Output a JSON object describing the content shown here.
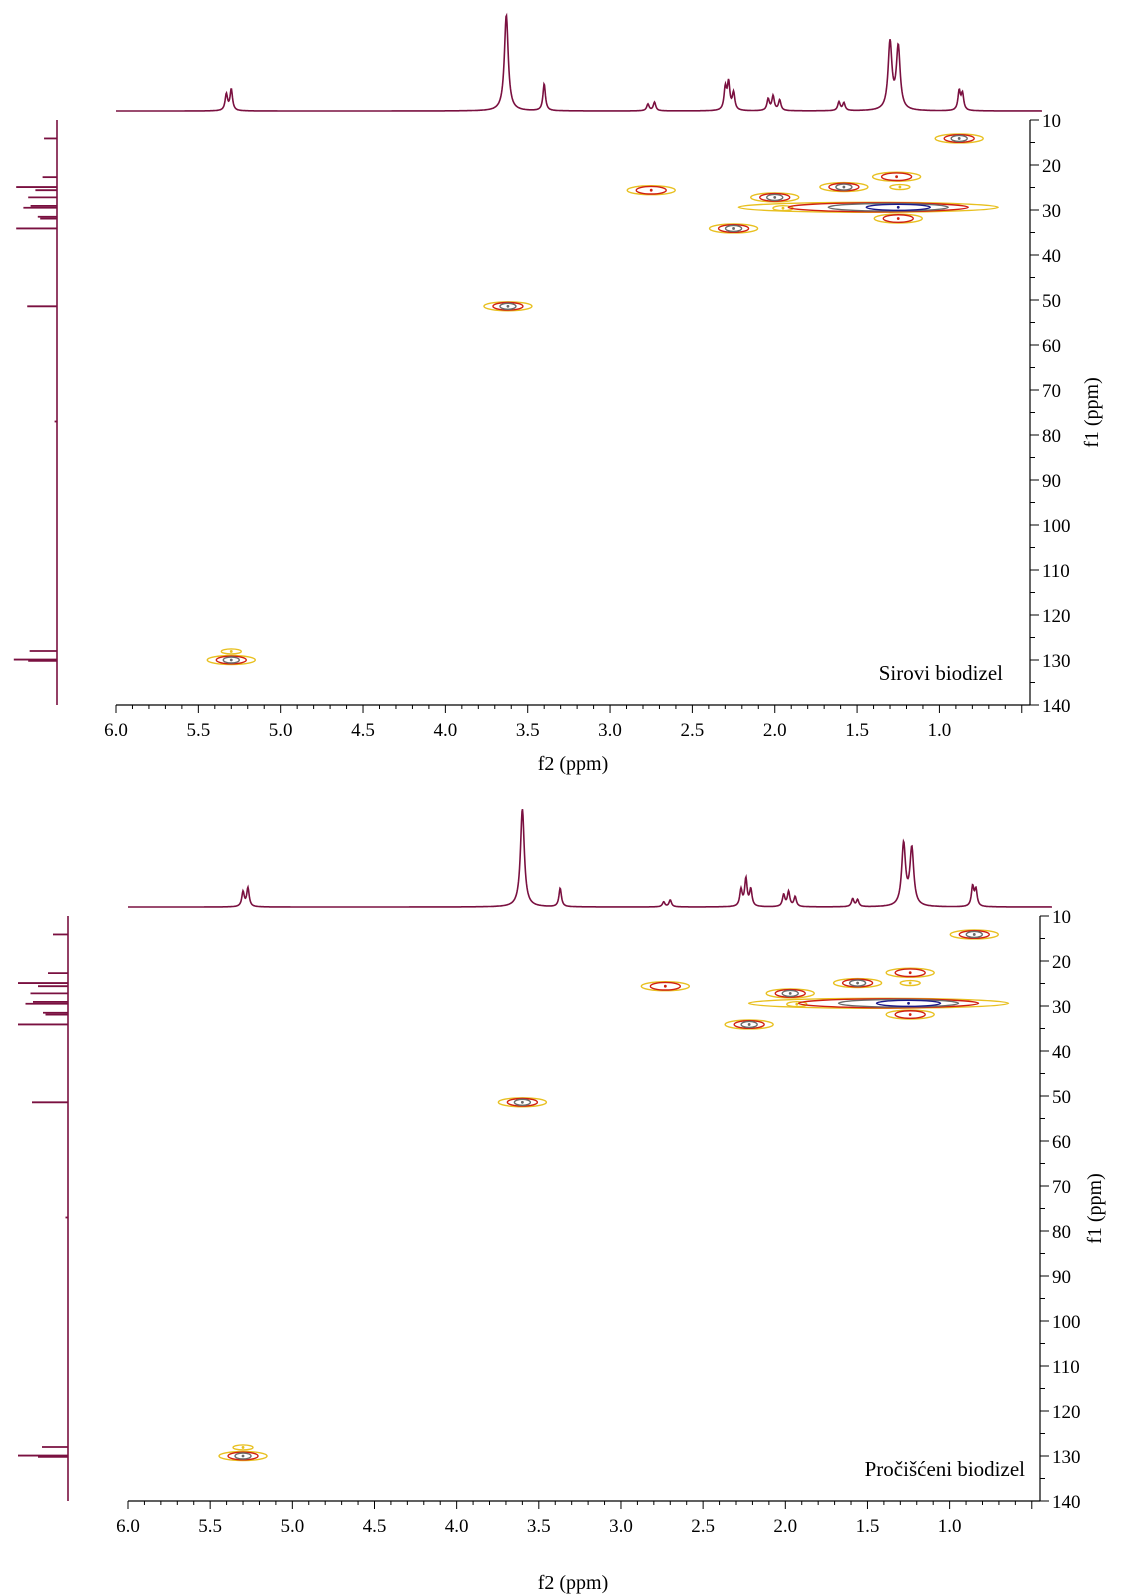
{
  "colors": {
    "projection": "#7a1040",
    "axis": "#000000",
    "contour_levels": [
      "#e8c020",
      "#d02010",
      "#6a6a6a",
      "#1a1a8a"
    ]
  },
  "chart_data": [
    {
      "type": "hsqc-2d-nmr",
      "sample_label": "Sirovi biodizel",
      "xlabel": "f2 (ppm)",
      "ylabel": "f1 (ppm)",
      "xlim": [
        6.0,
        0.45
      ],
      "ylim": [
        10,
        140
      ],
      "x_ticks": [
        "6.0",
        "5.5",
        "5.0",
        "4.5",
        "4.0",
        "3.5",
        "3.0",
        "2.5",
        "2.0",
        "1.5",
        "1.0"
      ],
      "y_ticks": [
        "10",
        "20",
        "30",
        "40",
        "50",
        "60",
        "70",
        "80",
        "90",
        "100",
        "110",
        "120",
        "130",
        "140"
      ],
      "h1_peaks": [
        {
          "ppm": 5.33,
          "height": 0.17
        },
        {
          "ppm": 5.3,
          "height": 0.22
        },
        {
          "ppm": 3.63,
          "height": 1.0
        },
        {
          "ppm": 3.4,
          "height": 0.28
        },
        {
          "ppm": 2.77,
          "height": 0.07
        },
        {
          "ppm": 2.73,
          "height": 0.09
        },
        {
          "ppm": 2.3,
          "height": 0.23
        },
        {
          "ppm": 2.28,
          "height": 0.28
        },
        {
          "ppm": 2.25,
          "height": 0.18
        },
        {
          "ppm": 2.04,
          "height": 0.12
        },
        {
          "ppm": 2.01,
          "height": 0.15
        },
        {
          "ppm": 1.97,
          "height": 0.11
        },
        {
          "ppm": 1.61,
          "height": 0.09
        },
        {
          "ppm": 1.58,
          "height": 0.08
        },
        {
          "ppm": 1.3,
          "height": 0.7
        },
        {
          "ppm": 1.25,
          "height": 0.65
        },
        {
          "ppm": 0.88,
          "height": 0.2
        },
        {
          "ppm": 0.86,
          "height": 0.17
        }
      ],
      "c13_peaks": [
        {
          "ppm": 14.1,
          "height": 0.27
        },
        {
          "ppm": 22.7,
          "height": 0.3
        },
        {
          "ppm": 24.9,
          "height": 0.85
        },
        {
          "ppm": 25.6,
          "height": 0.45
        },
        {
          "ppm": 27.2,
          "height": 0.6
        },
        {
          "ppm": 29.1,
          "height": 0.55
        },
        {
          "ppm": 29.5,
          "height": 0.7
        },
        {
          "ppm": 31.5,
          "height": 0.4
        },
        {
          "ppm": 31.9,
          "height": 0.35
        },
        {
          "ppm": 34.1,
          "height": 0.85
        },
        {
          "ppm": 51.4,
          "height": 0.62
        },
        {
          "ppm": 77.0,
          "height": 0.05
        },
        {
          "ppm": 128.0,
          "height": 0.57
        },
        {
          "ppm": 129.9,
          "height": 0.9
        },
        {
          "ppm": 130.2,
          "height": 0.6
        }
      ],
      "cross_peaks": [
        {
          "h": 5.3,
          "c": 130.0,
          "levels": 3
        },
        {
          "h": 5.3,
          "c": 128.1,
          "levels": 1
        },
        {
          "h": 3.62,
          "c": 51.4,
          "levels": 3
        },
        {
          "h": 2.75,
          "c": 25.6,
          "levels": 2
        },
        {
          "h": 2.25,
          "c": 34.1,
          "levels": 3
        },
        {
          "h": 2.0,
          "c": 27.2,
          "levels": 3
        },
        {
          "h": 1.95,
          "c": 29.6,
          "levels": 1
        },
        {
          "h": 1.58,
          "c": 24.9,
          "levels": 3
        },
        {
          "h": 1.26,
          "c": 22.6,
          "levels": 2
        },
        {
          "h": 1.24,
          "c": 24.9,
          "levels": 1
        },
        {
          "h": 1.25,
          "c": 29.4,
          "levels": 4
        },
        {
          "h": 1.25,
          "c": 31.9,
          "levels": 2
        },
        {
          "h": 0.88,
          "c": 14.1,
          "levels": 3
        }
      ]
    },
    {
      "type": "hsqc-2d-nmr",
      "sample_label": "Pročišćeni biodizel",
      "xlabel": "f2 (ppm)",
      "ylabel": "f1 (ppm)",
      "xlim": [
        6.0,
        0.45
      ],
      "ylim": [
        10,
        140
      ],
      "x_ticks": [
        "6.0",
        "5.5",
        "5.0",
        "4.5",
        "4.0",
        "3.5",
        "3.0",
        "2.5",
        "2.0",
        "1.5",
        "1.0"
      ],
      "y_ticks": [
        "10",
        "20",
        "30",
        "40",
        "50",
        "60",
        "70",
        "80",
        "90",
        "100",
        "110",
        "120",
        "130",
        "140"
      ],
      "h1_peaks": [
        {
          "ppm": 5.3,
          "height": 0.15
        },
        {
          "ppm": 5.27,
          "height": 0.19
        },
        {
          "ppm": 3.6,
          "height": 1.0
        },
        {
          "ppm": 3.37,
          "height": 0.19
        },
        {
          "ppm": 2.74,
          "height": 0.05
        },
        {
          "ppm": 2.7,
          "height": 0.07
        },
        {
          "ppm": 2.27,
          "height": 0.17
        },
        {
          "ppm": 2.24,
          "height": 0.28
        },
        {
          "ppm": 2.21,
          "height": 0.17
        },
        {
          "ppm": 2.01,
          "height": 0.12
        },
        {
          "ppm": 1.98,
          "height": 0.15
        },
        {
          "ppm": 1.94,
          "height": 0.1
        },
        {
          "ppm": 1.59,
          "height": 0.08
        },
        {
          "ppm": 1.56,
          "height": 0.07
        },
        {
          "ppm": 1.28,
          "height": 0.63
        },
        {
          "ppm": 1.23,
          "height": 0.58
        },
        {
          "ppm": 0.86,
          "height": 0.2
        },
        {
          "ppm": 0.84,
          "height": 0.17
        }
      ],
      "c13_peaks": [
        {
          "ppm": 14.1,
          "height": 0.3
        },
        {
          "ppm": 22.7,
          "height": 0.4
        },
        {
          "ppm": 24.9,
          "height": 1.0
        },
        {
          "ppm": 25.6,
          "height": 0.6
        },
        {
          "ppm": 27.2,
          "height": 0.75
        },
        {
          "ppm": 29.1,
          "height": 0.7
        },
        {
          "ppm": 29.5,
          "height": 0.85
        },
        {
          "ppm": 31.5,
          "height": 0.5
        },
        {
          "ppm": 31.9,
          "height": 0.45
        },
        {
          "ppm": 34.1,
          "height": 1.0
        },
        {
          "ppm": 51.4,
          "height": 0.72
        },
        {
          "ppm": 77.0,
          "height": 0.05
        },
        {
          "ppm": 128.0,
          "height": 0.52
        },
        {
          "ppm": 129.9,
          "height": 1.0
        },
        {
          "ppm": 130.2,
          "height": 0.6
        }
      ],
      "cross_peaks": [
        {
          "h": 5.3,
          "c": 130.0,
          "levels": 3
        },
        {
          "h": 5.3,
          "c": 128.1,
          "levels": 1
        },
        {
          "h": 3.6,
          "c": 51.4,
          "levels": 3
        },
        {
          "h": 2.73,
          "c": 25.6,
          "levels": 2
        },
        {
          "h": 2.22,
          "c": 34.1,
          "levels": 3
        },
        {
          "h": 1.97,
          "c": 27.2,
          "levels": 3
        },
        {
          "h": 1.93,
          "c": 29.6,
          "levels": 1
        },
        {
          "h": 1.56,
          "c": 24.9,
          "levels": 3
        },
        {
          "h": 1.24,
          "c": 22.6,
          "levels": 2
        },
        {
          "h": 1.24,
          "c": 24.9,
          "levels": 1
        },
        {
          "h": 1.25,
          "c": 29.4,
          "levels": 4
        },
        {
          "h": 1.24,
          "c": 31.9,
          "levels": 2
        },
        {
          "h": 0.85,
          "c": 14.1,
          "levels": 3
        }
      ]
    }
  ]
}
